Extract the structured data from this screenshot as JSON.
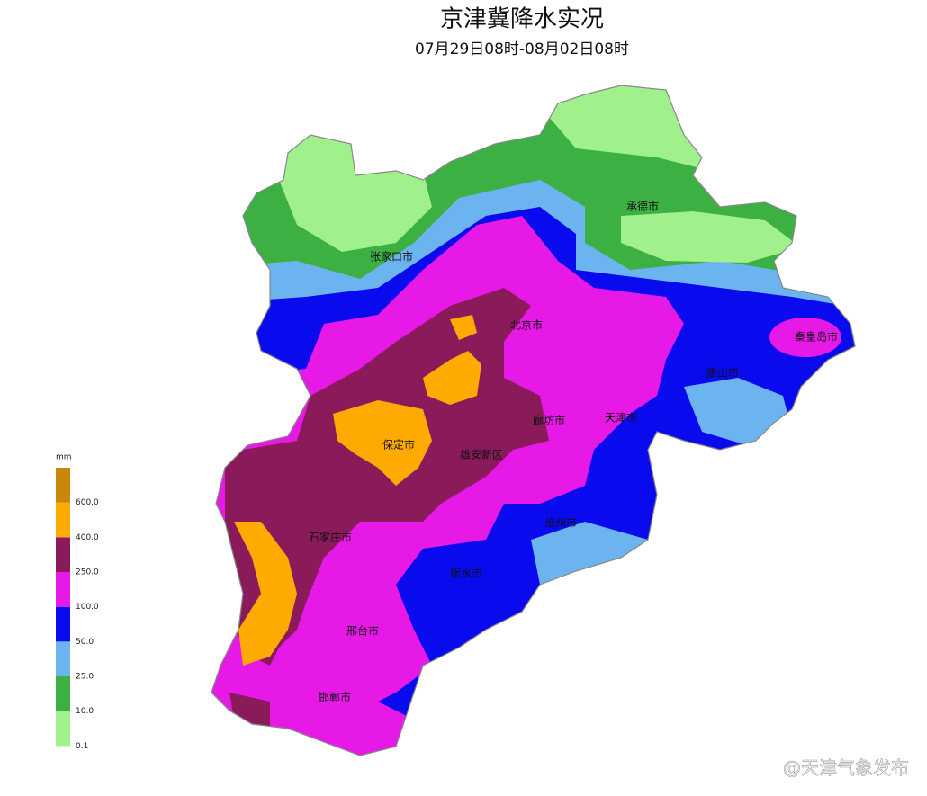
{
  "title": "京津冀降水实况",
  "subtitle": "07月29日08时-08月02日08时",
  "legend": {
    "unit": "mm",
    "labels": [
      "0.1",
      "10.0",
      "25.0",
      "50.0",
      "100.0",
      "250.0",
      "400.0",
      "600.0"
    ],
    "colors": [
      "#ffffff",
      "#a0f08c",
      "#3cb043",
      "#6cb4f0",
      "#0a0aee",
      "#e619e6",
      "#8b1a5a",
      "#ffaa00",
      "#c8860a"
    ]
  },
  "cities": [
    "承德市",
    "张家口市",
    "北京市",
    "秦皇岛市",
    "唐山市",
    "廊坊市",
    "天津市",
    "保定市",
    "雄安新区",
    "沧州市",
    "石家庄市",
    "衡水市",
    "邢台市",
    "邯郸市"
  ],
  "watermark": "@天津气象发布"
}
